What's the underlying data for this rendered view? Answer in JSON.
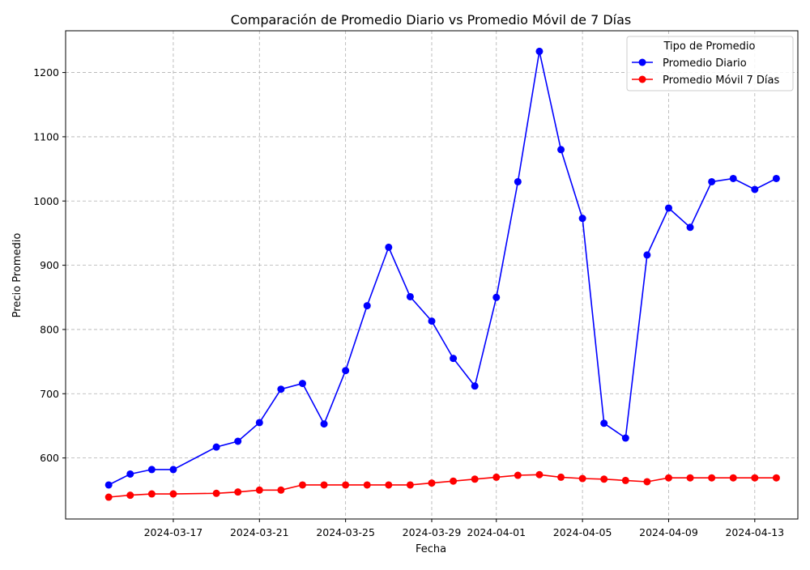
{
  "chart_data": {
    "type": "line",
    "title": "Comparación de Promedio Diario vs Promedio Móvil de 7 Días",
    "xlabel": "Fecha",
    "ylabel": "Precio Promedio",
    "x_tick_labels": [
      "2024-03-17",
      "2024-03-21",
      "2024-03-25",
      "2024-03-29",
      "2024-04-01",
      "2024-04-05",
      "2024-04-09",
      "2024-04-13"
    ],
    "y_tick_labels": [
      "600",
      "700",
      "800",
      "900",
      "1000",
      "1100",
      "1200"
    ],
    "xlim": [
      "2024-03-12",
      "2024-04-15"
    ],
    "ylim": [
      505,
      1265
    ],
    "grid": true,
    "legend_position": "top-right",
    "legend_title": "Tipo de Promedio",
    "dates": [
      "2024-03-14",
      "2024-03-15",
      "2024-03-16",
      "2024-03-17",
      "2024-03-19",
      "2024-03-20",
      "2024-03-21",
      "2024-03-22",
      "2024-03-23",
      "2024-03-24",
      "2024-03-25",
      "2024-03-26",
      "2024-03-27",
      "2024-03-28",
      "2024-03-29",
      "2024-03-30",
      "2024-03-31",
      "2024-04-01",
      "2024-04-02",
      "2024-04-03",
      "2024-04-04",
      "2024-04-05",
      "2024-04-06",
      "2024-04-07",
      "2024-04-08",
      "2024-04-09",
      "2024-04-10",
      "2024-04-11",
      "2024-04-12",
      "2024-04-13",
      "2024-04-14"
    ],
    "series": [
      {
        "name": "Promedio Diario",
        "color": "#0000ff",
        "values": [
          558,
          575,
          582,
          582,
          617,
          626,
          655,
          707,
          716,
          653,
          736,
          837,
          928,
          851,
          813,
          755,
          712,
          850,
          1030,
          1233,
          1080,
          973,
          654,
          631,
          916,
          989,
          959,
          1030,
          1035,
          1018,
          1035
        ]
      },
      {
        "name": "Promedio Móvil 7 Días",
        "color": "#ff0000",
        "values": [
          539,
          542,
          544,
          544,
          545,
          547,
          550,
          550,
          558,
          558,
          558,
          558,
          558,
          558,
          561,
          564,
          567,
          570,
          573,
          574,
          570,
          568,
          567,
          565,
          563,
          569,
          569,
          569,
          569,
          569,
          569
        ]
      }
    ]
  }
}
